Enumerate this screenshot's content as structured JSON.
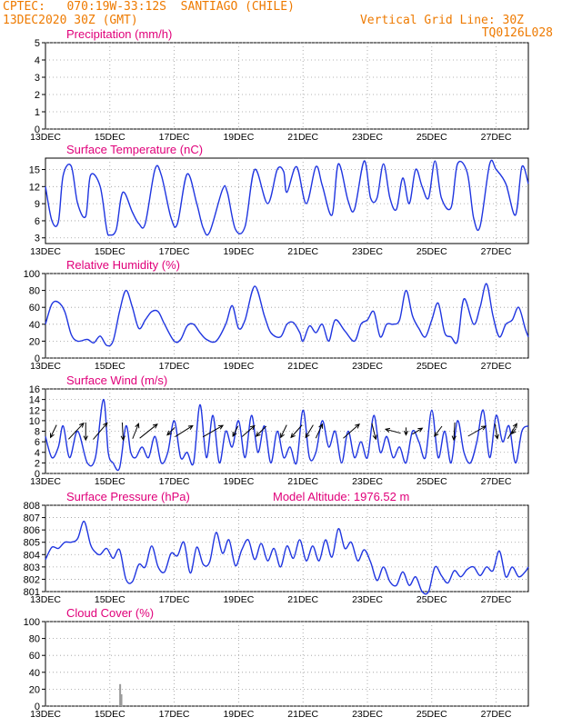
{
  "header": {
    "line1": "CPTEC:   070:19W-33:12S  SANTIAGO (CHILE)",
    "line2": "13DEC2020 30Z (GMT)",
    "right1": "Vertical Grid Line: 30Z",
    "right2": "TQ0126L028"
  },
  "colors": {
    "header": "#ee7a00",
    "title": "#e0007a",
    "series": "#1f35e0",
    "bars": "#9a9a9a",
    "wind": "#000000"
  },
  "chart_data": [
    {
      "type": "bar",
      "title": "Precipitation (mm/h)",
      "ylim": [
        0,
        5
      ],
      "yticks": [
        "0",
        "1",
        "2",
        "3",
        "4",
        "5"
      ],
      "xticks": [
        "13DEC",
        "15DEC",
        "17DEC",
        "19DEC",
        "21DEC",
        "23DEC",
        "25DEC",
        "27DEC"
      ],
      "xlim_days": [
        13.0,
        28.0
      ],
      "grid": true,
      "bars": []
    },
    {
      "type": "line",
      "title": "Surface Temperature (nC)",
      "ylim": [
        2,
        17
      ],
      "yticks": [
        "3",
        "6",
        "9",
        "12",
        "15"
      ],
      "xticks": [
        "13DEC",
        "15DEC",
        "17DEC",
        "19DEC",
        "21DEC",
        "23DEC",
        "25DEC",
        "27DEC"
      ],
      "xlim_days": [
        13.0,
        28.0
      ],
      "grid": true,
      "series": [
        {
          "x": [
            13.0,
            13.2,
            13.4,
            13.55,
            13.8,
            14.0,
            14.25,
            14.4,
            14.7,
            14.9,
            15.0,
            15.2,
            15.4,
            15.7,
            15.9,
            16.1,
            16.4,
            16.6,
            16.9,
            17.1,
            17.4,
            17.7,
            17.9,
            18.1,
            18.5,
            18.65,
            18.9,
            19.2,
            19.5,
            19.9,
            20.2,
            20.4,
            20.5,
            20.8,
            21.1,
            21.4,
            21.6,
            21.9,
            22.1,
            22.4,
            22.6,
            22.9,
            23.1,
            23.3,
            23.5,
            23.7,
            23.9,
            24.1,
            24.3,
            24.5,
            24.7,
            24.9,
            25.1,
            25.3,
            25.6,
            25.8,
            26.1,
            26.3,
            26.5,
            26.8,
            27.0,
            27.3,
            27.6,
            27.8,
            28.0
          ],
          "y": [
            12,
            6,
            5.8,
            14,
            15.6,
            9,
            6.8,
            14,
            12,
            4.5,
            3.5,
            4.5,
            11,
            7.5,
            5.5,
            5.5,
            15,
            14,
            6.5,
            5.5,
            14.2,
            9,
            4.7,
            4,
            11.5,
            11,
            4.5,
            5,
            15,
            9,
            15,
            14.6,
            11,
            15.5,
            9,
            15.5,
            12.2,
            7,
            16,
            9.5,
            8,
            16.5,
            10,
            10,
            16,
            10,
            8,
            13.5,
            9,
            15,
            12,
            10,
            16.5,
            10,
            8.3,
            16,
            14.5,
            6.5,
            5,
            16,
            15,
            12.5,
            7,
            15.5,
            12.5
          ]
        }
      ]
    },
    {
      "type": "line",
      "title": "Relative Humidity (%)",
      "ylim": [
        0,
        100
      ],
      "yticks": [
        "0",
        "20",
        "40",
        "60",
        "80",
        "100"
      ],
      "xticks": [
        "13DEC",
        "15DEC",
        "17DEC",
        "19DEC",
        "21DEC",
        "23DEC",
        "25DEC",
        "27DEC"
      ],
      "xlim_days": [
        13.0,
        28.0
      ],
      "grid": true,
      "series": [
        {
          "x": [
            13.0,
            13.2,
            13.4,
            13.6,
            13.8,
            14.0,
            14.3,
            14.5,
            14.7,
            14.9,
            15.1,
            15.3,
            15.5,
            15.7,
            15.9,
            16.1,
            16.3,
            16.5,
            16.7,
            17.0,
            17.2,
            17.4,
            17.6,
            17.8,
            18.0,
            18.3,
            18.6,
            18.8,
            19.0,
            19.2,
            19.5,
            19.8,
            20.0,
            20.3,
            20.5,
            20.7,
            20.9,
            21.0,
            21.2,
            21.4,
            21.6,
            21.8,
            22.0,
            22.3,
            22.6,
            22.8,
            23.0,
            23.2,
            23.4,
            23.6,
            23.8,
            24.0,
            24.2,
            24.4,
            24.6,
            24.8,
            25.0,
            25.2,
            25.4,
            25.6,
            25.8,
            26.0,
            26.3,
            26.5,
            26.7,
            26.9,
            27.1,
            27.3,
            27.5,
            27.7,
            27.9,
            28.0
          ],
          "y": [
            40,
            64,
            66,
            55,
            28,
            20,
            22,
            18,
            26,
            15,
            20,
            55,
            80,
            60,
            35,
            45,
            55,
            55,
            40,
            20,
            22,
            38,
            40,
            30,
            22,
            20,
            40,
            62,
            35,
            45,
            85,
            50,
            30,
            25,
            40,
            42,
            30,
            20,
            38,
            30,
            40,
            20,
            45,
            32,
            20,
            40,
            45,
            55,
            25,
            40,
            40,
            45,
            80,
            50,
            35,
            25,
            45,
            65,
            30,
            25,
            20,
            70,
            40,
            60,
            88,
            50,
            25,
            40,
            45,
            60,
            35,
            25
          ]
        }
      ]
    },
    {
      "type": "line",
      "title": "Surface Wind (m/s)",
      "ylim": [
        0,
        16
      ],
      "yticks": [
        "0",
        "2",
        "4",
        "6",
        "8",
        "10",
        "12",
        "14",
        "16"
      ],
      "xticks": [
        "13DEC",
        "15DEC",
        "17DEC",
        "19DEC",
        "21DEC",
        "23DEC",
        "25DEC",
        "27DEC"
      ],
      "xlim_days": [
        13.0,
        28.0
      ],
      "grid": true,
      "series": [
        {
          "x": [
            13.0,
            13.2,
            13.4,
            13.55,
            13.75,
            14.0,
            14.3,
            14.55,
            14.8,
            14.95,
            15.1,
            15.3,
            15.5,
            15.65,
            15.8,
            16.0,
            16.2,
            16.4,
            16.6,
            16.8,
            17.0,
            17.2,
            17.4,
            17.6,
            17.8,
            18.0,
            18.2,
            18.4,
            18.6,
            18.8,
            19.0,
            19.2,
            19.4,
            19.6,
            19.8,
            20.0,
            20.2,
            20.4,
            20.6,
            20.8,
            21.0,
            21.2,
            21.4,
            21.6,
            21.8,
            22.0,
            22.2,
            22.4,
            22.6,
            22.8,
            23.0,
            23.2,
            23.4,
            23.6,
            23.8,
            24.0,
            24.2,
            24.4,
            24.6,
            24.8,
            25.0,
            25.2,
            25.4,
            25.6,
            25.8,
            26.0,
            26.2,
            26.4,
            26.6,
            26.8,
            27.0,
            27.2,
            27.4,
            27.6,
            27.8,
            28.0
          ],
          "y": [
            7,
            3,
            5,
            9,
            3,
            8,
            2,
            3,
            14,
            4,
            2,
            1,
            9,
            4,
            3,
            5,
            3,
            7,
            2,
            4,
            10,
            3,
            4,
            2,
            13,
            3,
            11,
            2,
            8,
            5,
            10,
            3,
            11,
            4,
            9,
            2,
            8,
            3,
            5,
            2,
            12,
            3,
            4,
            10,
            5,
            8,
            2,
            8,
            3,
            6,
            3,
            11,
            4,
            7,
            3,
            5,
            2,
            8,
            6,
            3,
            12,
            3,
            8,
            2,
            10,
            4,
            2,
            6,
            12,
            3,
            11,
            6,
            9,
            2,
            8,
            9
          ]
        }
      ],
      "arrows": [
        {
          "x": 13.25,
          "u": -1.2,
          "v": -2.5
        },
        {
          "x": 13.95,
          "u": 3.0,
          "v": 3.2
        },
        {
          "x": 14.25,
          "u": 0.0,
          "v": -3.5
        },
        {
          "x": 14.7,
          "u": 2.8,
          "v": 3.3
        },
        {
          "x": 15.4,
          "u": 0.2,
          "v": -3.5
        },
        {
          "x": 15.8,
          "u": 1.2,
          "v": 3.0
        },
        {
          "x": 16.2,
          "u": 3.5,
          "v": 2.8
        },
        {
          "x": 16.9,
          "u": -1.5,
          "v": -1.5
        },
        {
          "x": 17.3,
          "u": 3.5,
          "v": 2.2
        },
        {
          "x": 18.2,
          "u": 4.0,
          "v": 2.3
        },
        {
          "x": 18.9,
          "u": -1.0,
          "v": -2.0
        },
        {
          "x": 19.3,
          "u": 2.5,
          "v": 2.2
        },
        {
          "x": 19.7,
          "u": -2.0,
          "v": -2.0
        },
        {
          "x": 20.4,
          "u": -1.2,
          "v": -2.5
        },
        {
          "x": 20.8,
          "u": -2.2,
          "v": -2.5
        },
        {
          "x": 21.5,
          "u": 1.3,
          "v": 2.8
        },
        {
          "x": 21.2,
          "u": -1.5,
          "v": -2.5
        },
        {
          "x": 22.5,
          "u": 3.2,
          "v": 2.8
        },
        {
          "x": 23.2,
          "u": 0.8,
          "v": -3.2
        },
        {
          "x": 23.8,
          "u": -3.0,
          "v": 0.8
        },
        {
          "x": 24.2,
          "u": 0.0,
          "v": -1.5
        },
        {
          "x": 24.55,
          "u": 2.0,
          "v": 1.2
        },
        {
          "x": 25.2,
          "u": -1.5,
          "v": -2.0
        },
        {
          "x": 25.7,
          "u": -0.2,
          "v": -3.5
        },
        {
          "x": 26.4,
          "u": 3.5,
          "v": 2.0
        },
        {
          "x": 27.0,
          "u": 0.5,
          "v": -3.0
        },
        {
          "x": 27.5,
          "u": 1.8,
          "v": 3.0
        },
        {
          "x": 27.55,
          "u": -0.8,
          "v": -1.0
        }
      ]
    },
    {
      "type": "line",
      "title": "Surface Pressure (hPa)",
      "annotation": "Model Altitude: 1976.52 m",
      "ylim": [
        801,
        808
      ],
      "yticks": [
        "801",
        "802",
        "803",
        "804",
        "805",
        "806",
        "807",
        "808"
      ],
      "xticks": [
        "13DEC",
        "15DEC",
        "17DEC",
        "19DEC",
        "21DEC",
        "23DEC",
        "25DEC",
        "27DEC"
      ],
      "xlim_days": [
        13.0,
        28.0
      ],
      "grid": true,
      "series": [
        {
          "x": [
            13.0,
            13.2,
            13.4,
            13.6,
            13.8,
            14.0,
            14.2,
            14.4,
            14.55,
            14.7,
            14.9,
            15.1,
            15.3,
            15.5,
            15.7,
            15.9,
            16.1,
            16.3,
            16.5,
            16.7,
            16.9,
            17.1,
            17.3,
            17.5,
            17.7,
            17.9,
            18.1,
            18.3,
            18.5,
            18.7,
            18.9,
            19.1,
            19.3,
            19.5,
            19.7,
            19.9,
            20.1,
            20.3,
            20.5,
            20.7,
            20.9,
            21.1,
            21.3,
            21.5,
            21.7,
            21.9,
            22.1,
            22.3,
            22.5,
            22.7,
            22.9,
            23.1,
            23.3,
            23.5,
            23.7,
            23.9,
            24.1,
            24.3,
            24.5,
            24.7,
            24.9,
            25.1,
            25.3,
            25.5,
            25.7,
            25.9,
            26.1,
            26.3,
            26.5,
            26.7,
            26.9,
            27.1,
            27.3,
            27.5,
            27.7,
            27.9,
            28.0
          ],
          "y": [
            803.6,
            804.6,
            804.5,
            805,
            805,
            805.3,
            806.7,
            804.8,
            804.2,
            804,
            804.5,
            803.7,
            804.4,
            802,
            801.8,
            803.2,
            803,
            804.7,
            803,
            802.6,
            804.1,
            803.9,
            805,
            802.5,
            804.6,
            803.2,
            803.4,
            805.8,
            804.1,
            805.2,
            803.1,
            804.4,
            805.2,
            803.6,
            804.9,
            803.5,
            804.5,
            803,
            804.7,
            803.7,
            805.2,
            803.5,
            804.7,
            803.5,
            805.2,
            803.8,
            806.1,
            804.5,
            805,
            803.5,
            804.4,
            803.4,
            801.9,
            803,
            801.8,
            801.5,
            802.6,
            801.5,
            802.2,
            801,
            801,
            803,
            802.3,
            801.7,
            802.7,
            802.2,
            802.8,
            803,
            802.3,
            803,
            802.7,
            804.3,
            802.2,
            803,
            802.2,
            802.6,
            803
          ]
        }
      ]
    },
    {
      "type": "bar",
      "title": "Cloud Cover (%)",
      "ylim": [
        0,
        100
      ],
      "yticks": [
        "0",
        "20",
        "40",
        "60",
        "80",
        "100"
      ],
      "xticks": [
        "13DEC",
        "15DEC",
        "17DEC",
        "19DEC",
        "21DEC",
        "23DEC",
        "25DEC",
        "27DEC"
      ],
      "xlim_days": [
        13.0,
        28.0
      ],
      "grid": true,
      "bars": [
        {
          "x": 15.32,
          "value": 26
        },
        {
          "x": 15.36,
          "value": 14
        }
      ]
    }
  ]
}
